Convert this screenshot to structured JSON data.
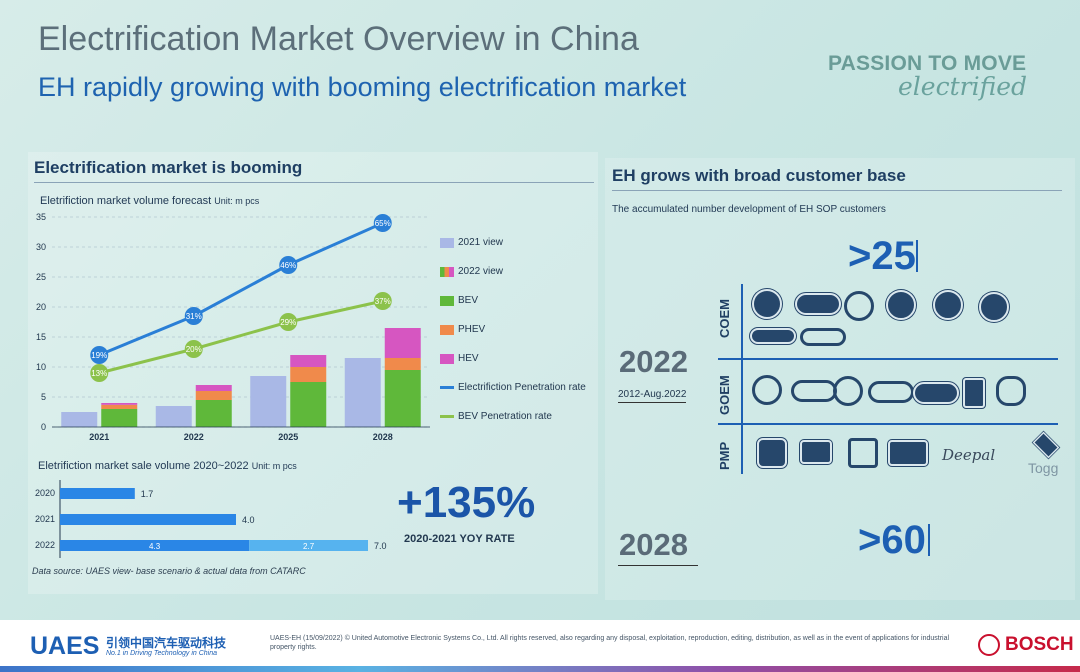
{
  "slide": {
    "title": "Electrification Market Overview in China",
    "subtitle": "EH rapidly growing with booming electrification market",
    "brand_top": "PASSION TO MOVE",
    "brand_script": "electrified"
  },
  "left": {
    "heading": "Electrification market is booming",
    "forecast_caption": "Eletrifiction market volume forecast",
    "forecast_unit": "Unit: m pcs",
    "sale_caption": "Eletrifiction market sale volume 2020~2022",
    "sale_unit": "Unit: m pcs",
    "rate_value": "+135%",
    "rate_label": "2020-2021 YOY RATE",
    "data_source": "Data source: UAES view- base scenario & actual data from CATARC"
  },
  "chart_data": [
    {
      "type": "bar",
      "title": "Eletrifiction market volume forecast",
      "unit": "Unit: m pcs",
      "categories": [
        "2021",
        "2022",
        "2025",
        "2028"
      ],
      "ylim": [
        0,
        35
      ],
      "yticks": [
        0,
        5,
        10,
        15,
        20,
        25,
        30,
        35
      ],
      "grid": true,
      "legend_position": "right",
      "series": [
        {
          "name": "2021 view",
          "color": "#a9b8e6",
          "values": [
            2.5,
            3.5,
            8.5,
            11.5
          ]
        },
        {
          "name": "BEV",
          "color": "#5fb83a",
          "values": [
            3,
            4.5,
            7.5,
            9.5
          ]
        },
        {
          "name": "PHEV",
          "color": "#f08a4b",
          "values": [
            0.7,
            1.5,
            2.5,
            2
          ]
        },
        {
          "name": "HEV",
          "color": "#d656c1",
          "values": [
            0.3,
            1,
            2,
            5
          ]
        }
      ],
      "legend": [
        "2021 view",
        "2022 view",
        "BEV",
        "PHEV",
        "HEV",
        "Electrifiction Penetration rate",
        "BEV Penetration rate"
      ],
      "lines": [
        {
          "name": "Electrifiction Penetration rate",
          "color": "#2a7fd6",
          "values": [
            12,
            18.5,
            27,
            34
          ],
          "labels": [
            "19%",
            "31%",
            "46%",
            "65%"
          ]
        },
        {
          "name": "BEV Penetration rate",
          "color": "#8cc24b",
          "values": [
            9,
            13,
            17.5,
            21
          ],
          "labels": [
            "13%",
            "20%",
            "29%",
            "37%"
          ]
        }
      ]
    },
    {
      "type": "bar",
      "orientation": "horizontal",
      "title": "Eletrifiction market sale volume 2020~2022",
      "unit": "Unit: m pcs",
      "categories": [
        "2020",
        "2021",
        "2022"
      ],
      "series": [
        {
          "name": "",
          "color": "#2a86e6",
          "values": [
            1.7,
            4.0,
            4.3
          ]
        },
        {
          "name": "",
          "color": "#56b3ef",
          "values": [
            0,
            0,
            2.7
          ]
        }
      ],
      "totals": [
        "1.7",
        "4.0",
        "7.0"
      ],
      "segment_labels": [
        "4.3",
        "2.7"
      ],
      "xlim": [
        0,
        7.5
      ]
    }
  ],
  "right": {
    "heading": "EH grows with broad customer base",
    "caption": "The accumulated number development of EH SOP customers",
    "count_2022": ">25",
    "count_2028": ">60",
    "year_2022": "2022",
    "year_2022_sub": "2012-Aug.2022",
    "year_2028": "2028",
    "row_coem": "COEM",
    "row_goem": "GOEM",
    "row_pmp": "PMP",
    "deepal": "Deepal",
    "togg": "Togg"
  },
  "footer": {
    "company": "UAES",
    "company_cn": "引领中国汽车驱动科技",
    "tagline": "No.1 in Driving Technology in China",
    "copyright": "UAES-EH (15/09/2022) © United Automotive Electronic Systems Co., Ltd. All rights reserved, also regarding any disposal, exploitation, reproduction, editing, distribution, as well as in the event of applications for industrial property rights.",
    "partner": "BOSCH"
  },
  "colors": {
    "background": "#c9e6e3",
    "accent": "#1d5fb3",
    "bosch_red": "#c9102e"
  }
}
